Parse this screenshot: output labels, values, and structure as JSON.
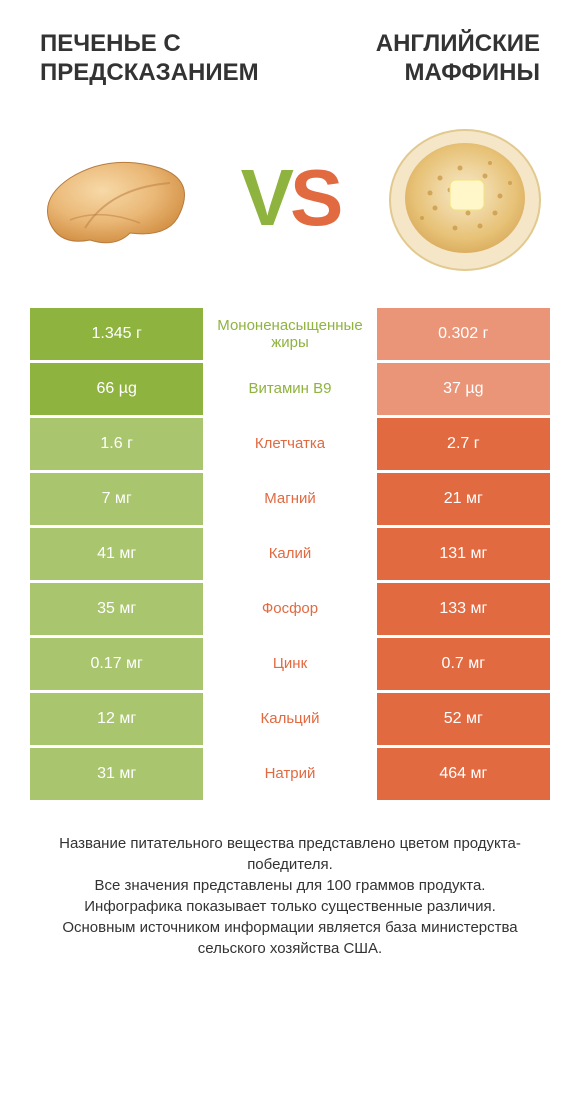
{
  "colors": {
    "left_winner_bg": "#8fb33f",
    "left_loser_bg": "#a9c56e",
    "right_winner_bg": "#e16a41",
    "right_loser_bg": "#eb9578",
    "left_label_color": "#8fb33f",
    "right_label_color": "#e16a41",
    "title_color": "#333333",
    "footnote_color": "#333333",
    "cell_text_color": "#ffffff",
    "background": "#ffffff"
  },
  "header": {
    "left": "ПЕЧЕНЬЕ С ПРЕДСКАЗАНИЕМ",
    "right": "АНГЛИЙСКИЕ МАФФИНЫ"
  },
  "vs": {
    "v": "V",
    "s": "S"
  },
  "rows": [
    {
      "label": "Мононенасыщенные жиры",
      "left": "1.345 г",
      "right": "0.302 г",
      "winner": "left"
    },
    {
      "label": "Витамин B9",
      "left": "66 µg",
      "right": "37 µg",
      "winner": "left"
    },
    {
      "label": "Клетчатка",
      "left": "1.6 г",
      "right": "2.7 г",
      "winner": "right"
    },
    {
      "label": "Магний",
      "left": "7 мг",
      "right": "21 мг",
      "winner": "right"
    },
    {
      "label": "Калий",
      "left": "41 мг",
      "right": "131 мг",
      "winner": "right"
    },
    {
      "label": "Фосфор",
      "left": "35 мг",
      "right": "133 мг",
      "winner": "right"
    },
    {
      "label": "Цинк",
      "left": "0.17 мг",
      "right": "0.7 мг",
      "winner": "right"
    },
    {
      "label": "Кальций",
      "left": "12 мг",
      "right": "52 мг",
      "winner": "right"
    },
    {
      "label": "Натрий",
      "left": "31 мг",
      "right": "464 мг",
      "winner": "right"
    }
  ],
  "footnote": {
    "l1": "Название питательного вещества представлено цветом продукта-победителя.",
    "l2": "Все значения представлены для 100 граммов продукта.",
    "l3": "Инфографика показывает только существенные различия.",
    "l4": "Основным источником информации является база министерства сельского хозяйства США."
  }
}
